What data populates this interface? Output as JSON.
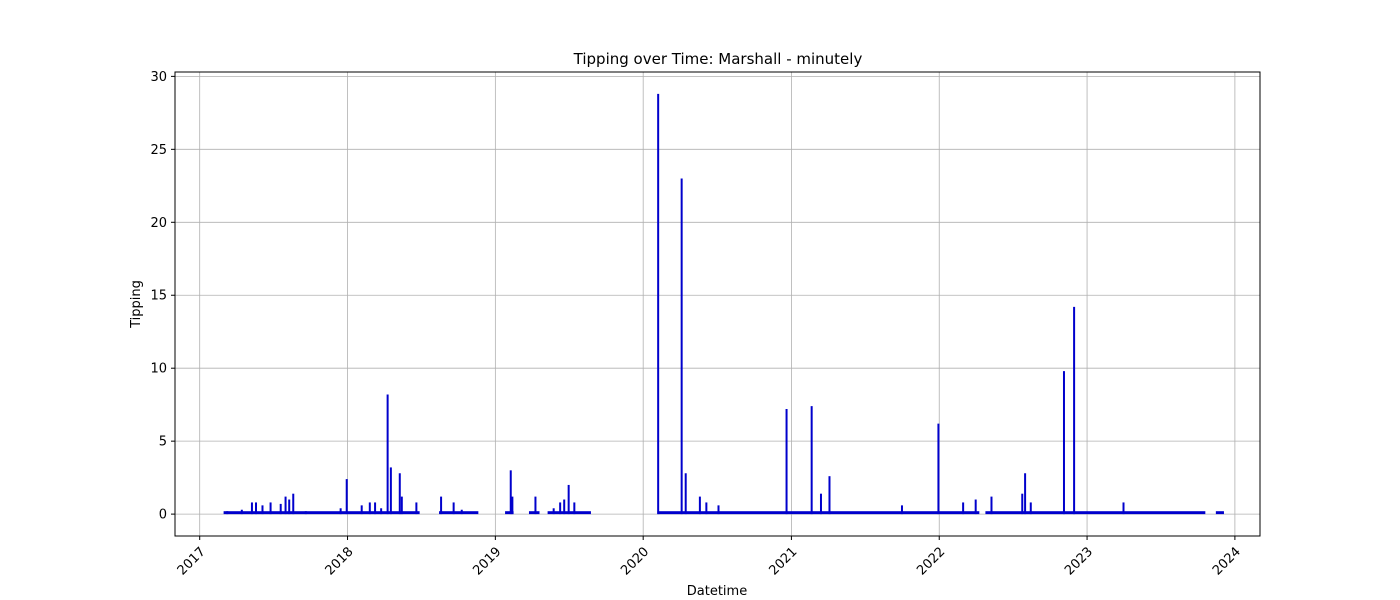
{
  "chart_data": {
    "type": "line",
    "title": "Tipping over Time: Marshall - minutely",
    "xlabel": "Datetime",
    "ylabel": "Tipping",
    "xlim": [
      "2016-11-01",
      "2024-03-03"
    ],
    "ylim": [
      -1.5,
      30.3
    ],
    "x_ticks": [
      "2017",
      "2018",
      "2019",
      "2020",
      "2021",
      "2022",
      "2023",
      "2024"
    ],
    "y_ticks": [
      0,
      5,
      10,
      15,
      20,
      25,
      30
    ],
    "grid": true,
    "line_color": "#0000cc",
    "segments": [
      [
        "2017-03-01",
        "2018-06-28"
      ],
      [
        "2018-08-15",
        "2018-11-20"
      ],
      [
        "2019-01-25",
        "2019-02-15"
      ],
      [
        "2019-03-25",
        "2019-04-20"
      ],
      [
        "2019-05-10",
        "2019-08-25"
      ],
      [
        "2020-02-05",
        "2022-04-10"
      ],
      [
        "2022-04-25",
        "2023-10-20"
      ],
      [
        "2023-11-15",
        "2023-12-05"
      ]
    ],
    "background_level": 0.1,
    "spikes": [
      [
        "2017-03-10",
        0.2
      ],
      [
        "2017-04-15",
        0.3
      ],
      [
        "2017-05-10",
        0.8
      ],
      [
        "2017-05-20",
        0.8
      ],
      [
        "2017-06-05",
        0.6
      ],
      [
        "2017-06-25",
        0.8
      ],
      [
        "2017-07-20",
        0.7
      ],
      [
        "2017-08-01",
        1.2
      ],
      [
        "2017-08-10",
        1.0
      ],
      [
        "2017-08-20",
        1.4
      ],
      [
        "2017-09-20",
        0.2
      ],
      [
        "2017-12-15",
        0.4
      ],
      [
        "2017-12-30",
        2.4
      ],
      [
        "2018-02-05",
        0.6
      ],
      [
        "2018-02-25",
        0.8
      ],
      [
        "2018-03-10",
        0.8
      ],
      [
        "2018-03-25",
        0.4
      ],
      [
        "2018-04-10",
        8.2
      ],
      [
        "2018-04-18",
        3.2
      ],
      [
        "2018-05-10",
        2.8
      ],
      [
        "2018-05-15",
        1.2
      ],
      [
        "2018-06-20",
        0.8
      ],
      [
        "2018-08-20",
        1.2
      ],
      [
        "2018-09-20",
        0.8
      ],
      [
        "2018-10-10",
        0.3
      ],
      [
        "2019-02-08",
        3.0
      ],
      [
        "2019-02-12",
        1.2
      ],
      [
        "2019-04-10",
        1.2
      ],
      [
        "2019-05-25",
        0.4
      ],
      [
        "2019-06-10",
        0.8
      ],
      [
        "2019-06-20",
        1.0
      ],
      [
        "2019-07-01",
        2.0
      ],
      [
        "2019-07-15",
        0.8
      ],
      [
        "2020-02-07",
        28.8
      ],
      [
        "2020-04-05",
        23.0
      ],
      [
        "2020-04-15",
        2.8
      ],
      [
        "2020-05-20",
        1.2
      ],
      [
        "2020-06-05",
        0.8
      ],
      [
        "2020-07-05",
        0.6
      ],
      [
        "2020-12-20",
        7.2
      ],
      [
        "2021-02-20",
        7.4
      ],
      [
        "2021-03-15",
        1.4
      ],
      [
        "2021-04-05",
        2.6
      ],
      [
        "2021-10-01",
        0.6
      ],
      [
        "2021-12-30",
        6.2
      ],
      [
        "2022-03-01",
        0.8
      ],
      [
        "2022-04-01",
        1.0
      ],
      [
        "2022-05-10",
        1.2
      ],
      [
        "2022-07-25",
        1.4
      ],
      [
        "2022-08-01",
        2.8
      ],
      [
        "2022-08-15",
        0.8
      ],
      [
        "2022-11-05",
        9.8
      ],
      [
        "2022-11-30",
        14.2
      ],
      [
        "2023-04-01",
        0.8
      ]
    ]
  }
}
